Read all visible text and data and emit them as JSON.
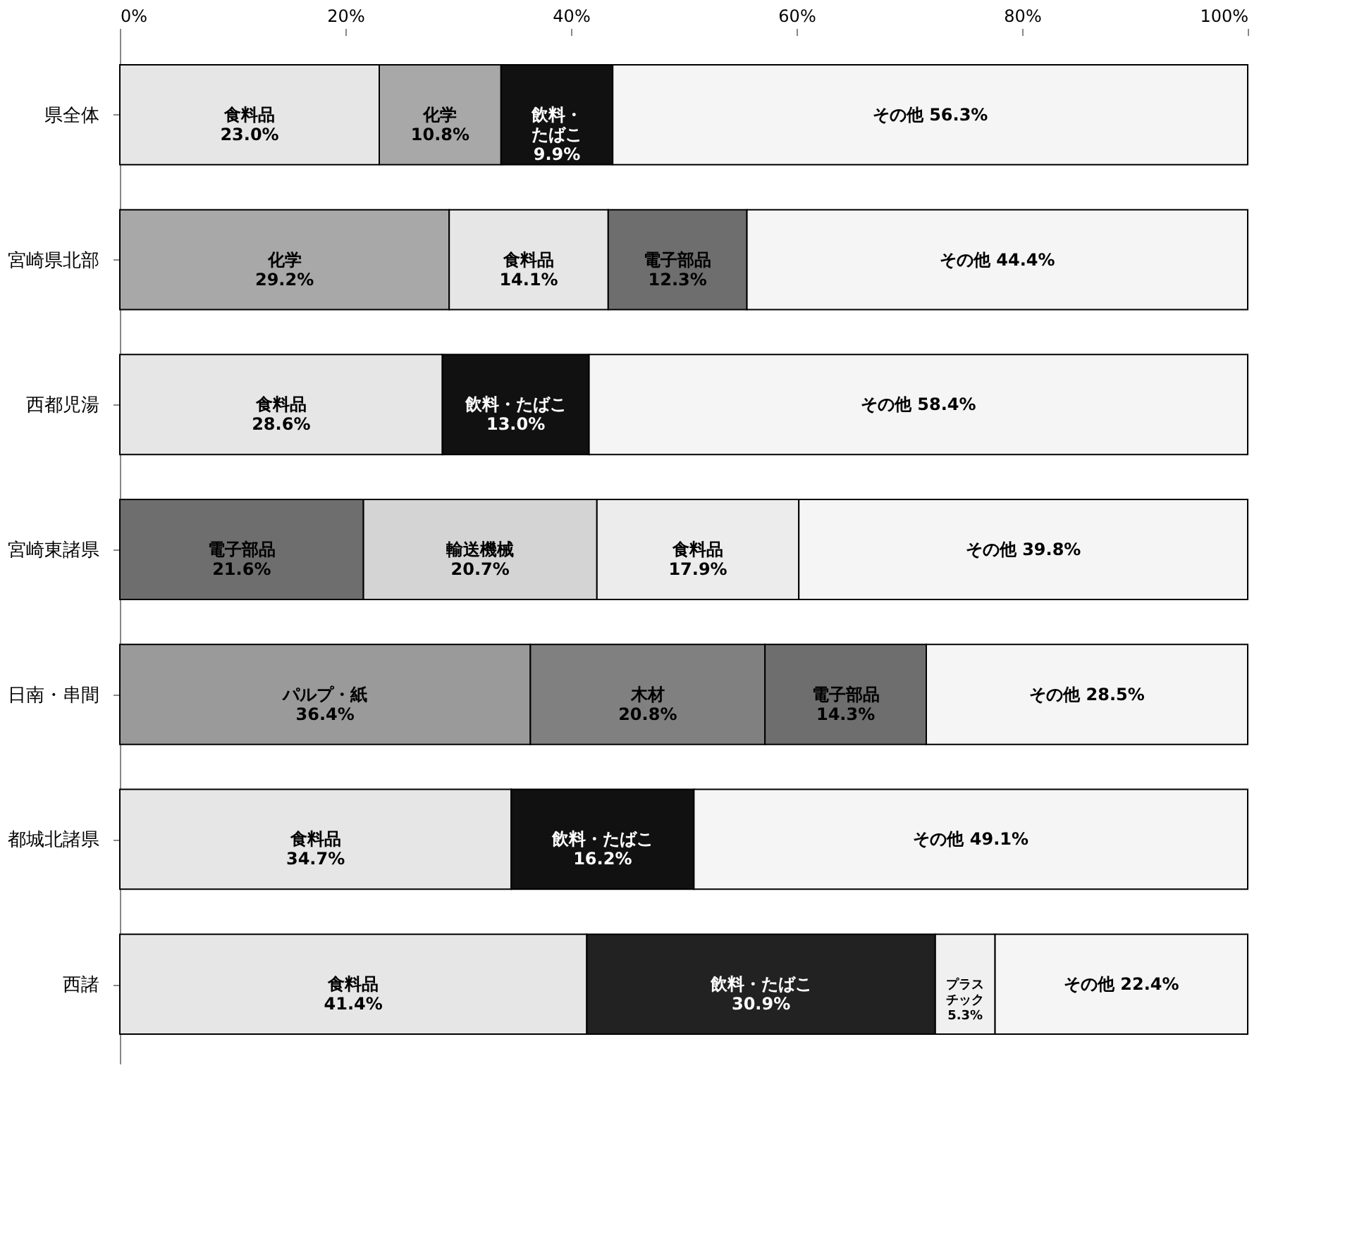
{
  "chart_data": {
    "type": "bar",
    "orientation": "horizontal",
    "stacked": true,
    "categories": [
      "県全体",
      "宮崎県北部",
      "西都児湯",
      "宮崎東諸県",
      "日南・串間",
      "都城北諸県",
      "西諸"
    ],
    "series": [
      {
        "colors": [
          "#e6e6e6",
          "#a8a8a8",
          "#e6e6e6",
          "#6e6e6e",
          "#9a9a9a",
          "#e6e6e6",
          "#e6e6e6"
        ],
        "values": [
          23.0,
          29.2,
          28.6,
          21.6,
          36.4,
          34.7,
          41.4
        ],
        "value_labels": [
          "食料品\n23.0%",
          "化学\n29.2%",
          "食料品\n28.6%",
          "電子部品\n21.6%",
          "パルプ・紙\n36.4%",
          "食料品\n34.7%",
          "食料品\n41.4%"
        ]
      },
      {
        "colors": [
          "#a8a8a8",
          "#e6e6e6",
          "#111111",
          "#d4d4d4",
          "#808080",
          "#111111",
          "#222222"
        ],
        "values": [
          10.8,
          14.1,
          13.0,
          20.7,
          20.8,
          16.2,
          30.9
        ],
        "value_labels": [
          "化学\n10.8%",
          "食料品\n14.1%",
          "飲料・たばこ\n13.0%",
          "輸送機械\n20.7%",
          "木材\n20.8%",
          "飲料・たばこ\n16.2%",
          "飲料・たばこ\n30.9%"
        ]
      },
      {
        "colors": [
          "#111111",
          "#6e6e6e",
          "#f5f5f5",
          "#ececec",
          "#6e6e6e",
          "#f5f5f5",
          "#f0f0f0"
        ],
        "values": [
          9.9,
          12.3,
          58.4,
          17.9,
          14.3,
          49.1,
          5.3
        ],
        "value_labels": [
          "飲料・たばこ\n9.9%",
          "電子部品\n12.3%",
          "その他 58.4%",
          "食料品\n17.9%",
          "電子部品\n14.3%",
          "その他 49.1%",
          "プラスチック\n5.3%"
        ]
      },
      {
        "colors": [
          "#f5f5f5",
          "#f5f5f5",
          null,
          "#f5f5f5",
          "#f5f5f5",
          null,
          "#f5f5f5"
        ],
        "values": [
          56.3,
          44.4,
          null,
          39.8,
          28.5,
          null,
          22.4
        ],
        "value_labels": [
          "その他 56.3%",
          "その他 44.4%",
          null,
          "その他 39.8%",
          "その他 28.5%",
          null,
          "その他 22.4%"
        ]
      }
    ],
    "xlim": [
      0,
      100
    ],
    "xticks": [
      {
        "value": 0,
        "label": "0%"
      },
      {
        "value": 20,
        "label": "20%"
      },
      {
        "value": 40,
        "label": "40%"
      },
      {
        "value": 60,
        "label": "60%"
      },
      {
        "value": 80,
        "label": "80%"
      },
      {
        "value": 100,
        "label": "100%"
      }
    ],
    "grid": false
  }
}
